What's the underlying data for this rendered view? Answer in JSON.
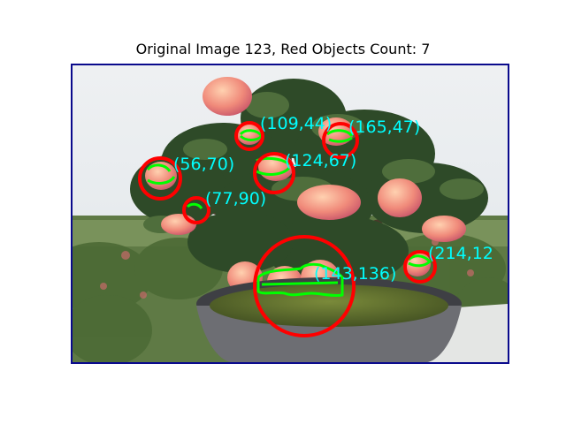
{
  "title": "Original Image 123, Red Objects Count: 7",
  "image": {
    "description_icon": "apple-tree-photo",
    "annotations": [
      {
        "label": "(109,44)"
      },
      {
        "label": "(165,47)"
      },
      {
        "label": "(56,70)"
      },
      {
        "label": "(124,67)"
      },
      {
        "label": "(77,90)"
      },
      {
        "label": "(214,12"
      },
      {
        "label": "(143,136)"
      }
    ]
  },
  "colors": {
    "circle": "#ff0000",
    "contour": "#00ff00",
    "label": "#00ffff",
    "frame": "#0a0a8c"
  }
}
